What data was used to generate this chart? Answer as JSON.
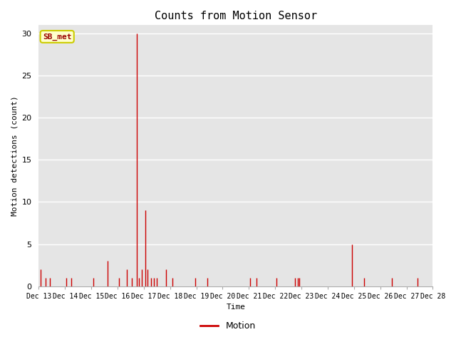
{
  "title": "Counts from Motion Sensor",
  "ylabel": "Motion detections (count)",
  "xlabel": "Time",
  "legend_label": "Motion",
  "legend_color": "#cc0000",
  "line_color": "#cc0000",
  "bg_color": "#e5e5e5",
  "ylim": [
    0,
    31
  ],
  "yticks": [
    0,
    5,
    10,
    15,
    20,
    25,
    30
  ],
  "annotation_label": "SB_met",
  "annotation_color": "#990000",
  "annotation_bg": "#ffffcc",
  "annotation_border": "#cccc00",
  "spikes": [
    {
      "day": 13.08,
      "val": 2
    },
    {
      "day": 13.25,
      "val": 1
    },
    {
      "day": 13.42,
      "val": 1
    },
    {
      "day": 14.05,
      "val": 1
    },
    {
      "day": 14.25,
      "val": 1
    },
    {
      "day": 15.08,
      "val": 1
    },
    {
      "day": 15.62,
      "val": 3
    },
    {
      "day": 16.05,
      "val": 1
    },
    {
      "day": 16.35,
      "val": 2
    },
    {
      "day": 16.55,
      "val": 1
    },
    {
      "day": 16.72,
      "val": 30
    },
    {
      "day": 16.82,
      "val": 1
    },
    {
      "day": 16.92,
      "val": 2
    },
    {
      "day": 17.05,
      "val": 9
    },
    {
      "day": 17.15,
      "val": 2
    },
    {
      "day": 17.28,
      "val": 1
    },
    {
      "day": 17.38,
      "val": 1
    },
    {
      "day": 17.48,
      "val": 1
    },
    {
      "day": 17.85,
      "val": 2
    },
    {
      "day": 18.08,
      "val": 1
    },
    {
      "day": 18.95,
      "val": 1
    },
    {
      "day": 19.42,
      "val": 1
    },
    {
      "day": 21.05,
      "val": 1
    },
    {
      "day": 21.28,
      "val": 1
    },
    {
      "day": 22.05,
      "val": 1
    },
    {
      "day": 22.75,
      "val": 1
    },
    {
      "day": 22.85,
      "val": 1
    },
    {
      "day": 22.92,
      "val": 1
    },
    {
      "day": 24.92,
      "val": 5
    },
    {
      "day": 25.38,
      "val": 1
    },
    {
      "day": 26.45,
      "val": 1
    },
    {
      "day": 27.42,
      "val": 1
    }
  ],
  "xtick_days": [
    13,
    14,
    15,
    16,
    17,
    18,
    19,
    20,
    21,
    22,
    23,
    24,
    25,
    26,
    27,
    28
  ],
  "xtick_labels": [
    "Dec 13",
    "Dec 14",
    "Dec 15",
    "Dec 16",
    "Dec 17",
    "Dec 18",
    "Dec 19",
    "Dec 20",
    "Dec 21",
    "Dec 22",
    "Dec 23",
    "Dec 24",
    "Dec 25",
    "Dec 26",
    "Dec 27",
    "Dec 28"
  ]
}
